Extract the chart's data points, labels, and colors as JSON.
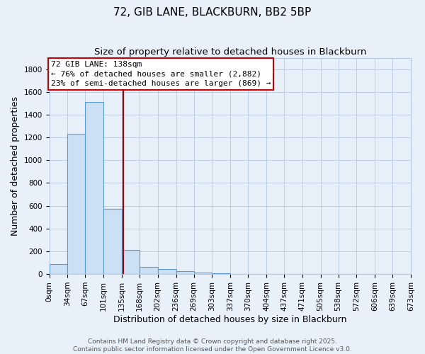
{
  "title": "72, GIB LANE, BLACKBURN, BB2 5BP",
  "subtitle": "Size of property relative to detached houses in Blackburn",
  "xlabel": "Distribution of detached houses by size in Blackburn",
  "ylabel": "Number of detached properties",
  "bin_edges": [
    0,
    34,
    67,
    101,
    135,
    168,
    202,
    236,
    269,
    303,
    337,
    370,
    404,
    437,
    471,
    505,
    538,
    572,
    606,
    639,
    673
  ],
  "bar_heights": [
    90,
    1230,
    1510,
    570,
    210,
    65,
    45,
    25,
    15,
    5,
    0,
    0,
    0,
    0,
    0,
    0,
    0,
    0,
    0,
    0
  ],
  "bar_color": "#cce0f5",
  "bar_edge_color": "#5b9bd5",
  "background_color": "#e8f0fa",
  "grid_color": "#b8c8e0",
  "property_line_x": 138,
  "property_line_color": "#aa0000",
  "annotation_title": "72 GIB LANE: 138sqm",
  "annotation_line1": "← 76% of detached houses are smaller (2,882)",
  "annotation_line2": "23% of semi-detached houses are larger (869) →",
  "annotation_box_color": "#ffffff",
  "annotation_box_edge": "#cc0000",
  "ylim": [
    0,
    1900
  ],
  "yticks": [
    0,
    200,
    400,
    600,
    800,
    1000,
    1200,
    1400,
    1600,
    1800
  ],
  "tick_labels": [
    "0sqm",
    "34sqm",
    "67sqm",
    "101sqm",
    "135sqm",
    "168sqm",
    "202sqm",
    "236sqm",
    "269sqm",
    "303sqm",
    "337sqm",
    "370sqm",
    "404sqm",
    "437sqm",
    "471sqm",
    "505sqm",
    "538sqm",
    "572sqm",
    "606sqm",
    "639sqm",
    "673sqm"
  ],
  "footer_line1": "Contains HM Land Registry data © Crown copyright and database right 2025.",
  "footer_line2": "Contains public sector information licensed under the Open Government Licence v3.0.",
  "title_fontsize": 11,
  "subtitle_fontsize": 9.5,
  "axis_label_fontsize": 9,
  "tick_fontsize": 7.5,
  "annotation_fontsize": 8,
  "footer_fontsize": 6.5
}
